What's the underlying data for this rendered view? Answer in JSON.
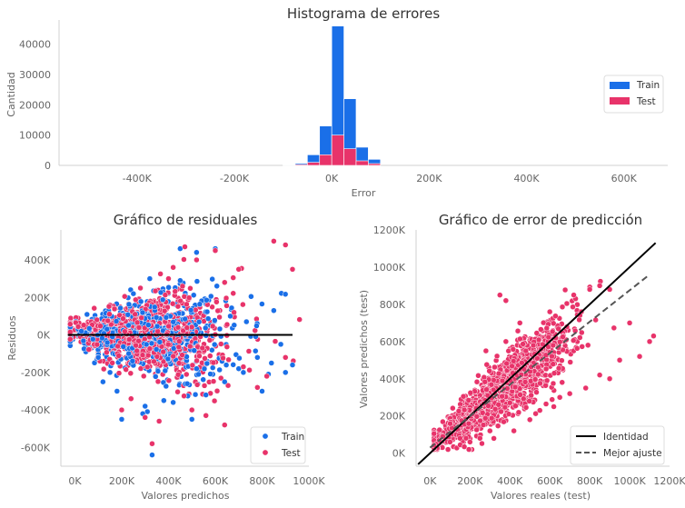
{
  "colors": {
    "train": "#1a6fe8",
    "test": "#e8336a",
    "identity": "#000000",
    "fit": "#555555",
    "spine": "#d0d0d0"
  },
  "chart_data": [
    {
      "type": "bar",
      "title": "Histograma de errores",
      "xlabel": "Error",
      "ylabel": "Cantidad",
      "xlim": [
        -560000,
        690000
      ],
      "ylim": [
        0,
        48000
      ],
      "xticks": [
        -400000,
        -200000,
        0,
        200000,
        400000,
        600000
      ],
      "xtick_labels": [
        "-400K",
        "-200K",
        "0K",
        "200K",
        "400K",
        "600K"
      ],
      "yticks": [
        0,
        10000,
        20000,
        30000,
        40000
      ],
      "ytick_labels": [
        "0",
        "10000",
        "20000",
        "30000",
        "40000"
      ],
      "bin_width": 25000,
      "bin_left_edges": [
        -100000,
        -75000,
        -50000,
        -25000,
        0,
        25000,
        50000,
        75000
      ],
      "series": [
        {
          "name": "Train",
          "values": [
            200,
            700,
            3500,
            13000,
            46000,
            22000,
            6000,
            2000
          ]
        },
        {
          "name": "Test",
          "values": [
            100,
            300,
            1000,
            3500,
            10000,
            5500,
            1500,
            600
          ]
        }
      ],
      "legend": {
        "position": "center-right"
      }
    },
    {
      "type": "scatter",
      "title": "Gráfico de residuales",
      "xlabel": "Valores predichos",
      "ylabel": "Residuos",
      "xlim": [
        -60000,
        1000000
      ],
      "ylim": [
        -700000,
        560000
      ],
      "xticks": [
        0,
        200000,
        400000,
        600000,
        800000,
        1000000
      ],
      "xtick_labels": [
        "0K",
        "200K",
        "400K",
        "600K",
        "800K",
        "1000K"
      ],
      "yticks": [
        -600000,
        -400000,
        -200000,
        0,
        200000,
        400000
      ],
      "ytick_labels": [
        "-600K",
        "-400K",
        "-200K",
        "0K",
        "200K",
        "400K"
      ],
      "series": [
        {
          "name": "Train",
          "x": [
            450000,
            520000,
            600000,
            250000,
            320000,
            450000,
            200000,
            330000,
            180000,
            290000,
            500000,
            560000,
            640000,
            700000,
            720000,
            780000,
            800000,
            840000,
            880000,
            900000,
            930000,
            850000,
            300000,
            380000,
            420000,
            480000,
            520000,
            120000,
            150000,
            100000
          ],
          "y": [
            460000,
            440000,
            460000,
            220000,
            300000,
            290000,
            -450000,
            -640000,
            -300000,
            -420000,
            -450000,
            -320000,
            -250000,
            -180000,
            -200000,
            -120000,
            -300000,
            -150000,
            -50000,
            -200000,
            -160000,
            130000,
            -380000,
            -350000,
            -360000,
            -260000,
            -180000,
            -250000,
            -200000,
            -120000
          ]
        },
        {
          "name": "Test",
          "x": [
            850000,
            900000,
            930000,
            700000,
            520000,
            600000,
            470000,
            420000,
            330000,
            300000,
            200000,
            500000,
            560000,
            640000,
            780000,
            820000,
            900000,
            640000,
            400000,
            460000,
            280000,
            360000,
            240000,
            720000,
            680000
          ],
          "y": [
            500000,
            480000,
            350000,
            350000,
            400000,
            450000,
            470000,
            360000,
            -580000,
            -440000,
            -400000,
            -400000,
            -430000,
            -480000,
            -280000,
            -220000,
            -120000,
            280000,
            300000,
            260000,
            250000,
            -460000,
            -340000,
            -170000,
            120000
          ]
        }
      ],
      "reference_line": {
        "y": 0,
        "x_from": -30000,
        "x_to": 930000
      },
      "legend": {
        "position": "bottom-right"
      }
    },
    {
      "type": "scatter",
      "title": "Gráfico de error de predicción",
      "xlabel": "Valores reales (test)",
      "ylabel": "Valores predichos (test)",
      "xlim": [
        -70000,
        1200000
      ],
      "ylim": [
        -70000,
        1200000
      ],
      "xticks": [
        0,
        200000,
        400000,
        600000,
        800000,
        1000000,
        1200000
      ],
      "xtick_labels": [
        "0K",
        "200K",
        "400K",
        "600K",
        "800K",
        "1000K",
        "1200K"
      ],
      "yticks": [
        0,
        200000,
        400000,
        600000,
        800000,
        1000000,
        1200000
      ],
      "ytick_labels": [
        "0K",
        "200K",
        "400K",
        "600K",
        "800K",
        "1000K",
        "1200K"
      ],
      "series": [
        {
          "name": "Test",
          "x": [
            350000,
            380000,
            450000,
            600000,
            720000,
            800000,
            850000,
            900000,
            1000000,
            1100000,
            1120000,
            900000,
            780000,
            620000,
            500000,
            420000,
            300000,
            250000,
            200000,
            150000,
            100000,
            650000,
            700000,
            550000,
            850000,
            950000,
            1050000,
            480000,
            380000,
            280000
          ],
          "y": [
            850000,
            820000,
            700000,
            760000,
            850000,
            880000,
            900000,
            880000,
            700000,
            600000,
            630000,
            400000,
            350000,
            250000,
            180000,
            120000,
            120000,
            80000,
            60000,
            80000,
            60000,
            300000,
            320000,
            230000,
            420000,
            500000,
            520000,
            550000,
            600000,
            550000
          ]
        }
      ],
      "lines": [
        {
          "name": "Identidad",
          "x": [
            -60000,
            1130000
          ],
          "y": [
            -60000,
            1130000
          ]
        },
        {
          "name": "Mejor ajuste",
          "x": [
            0,
            1100000
          ],
          "y": [
            30000,
            960000
          ]
        }
      ],
      "legend": {
        "position": "bottom-right"
      }
    }
  ]
}
